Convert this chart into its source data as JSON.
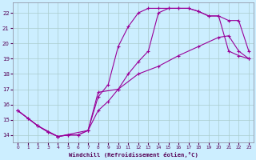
{
  "xlabel": "Windchill (Refroidissement éolien,°C)",
  "bg_color": "#cceeff",
  "grid_color": "#aacccc",
  "line_color": "#990099",
  "xlim": [
    -0.5,
    23.5
  ],
  "ylim": [
    13.5,
    22.7
  ],
  "yticks": [
    14,
    15,
    16,
    17,
    18,
    19,
    20,
    21,
    22
  ],
  "xticks": [
    0,
    1,
    2,
    3,
    4,
    5,
    6,
    7,
    8,
    9,
    10,
    11,
    12,
    13,
    14,
    15,
    16,
    17,
    18,
    19,
    20,
    21,
    22,
    23
  ],
  "curve1_x": [
    0,
    1,
    2,
    3,
    4,
    5,
    6,
    7,
    8,
    9,
    10,
    11,
    12,
    13,
    14,
    15,
    16,
    17,
    18,
    19,
    20,
    21,
    22,
    23
  ],
  "curve1_y": [
    15.6,
    15.1,
    14.6,
    14.2,
    13.9,
    14.0,
    14.0,
    14.3,
    16.5,
    17.3,
    19.8,
    21.1,
    22.0,
    22.3,
    22.3,
    22.3,
    22.3,
    22.3,
    22.1,
    21.8,
    21.8,
    21.5,
    21.5,
    19.5
  ],
  "curve2_x": [
    0,
    1,
    2,
    3,
    4,
    5,
    6,
    7,
    8,
    9,
    10,
    11,
    12,
    13,
    14,
    15,
    16,
    17,
    18,
    19,
    20,
    21,
    22,
    23
  ],
  "curve2_y": [
    15.6,
    15.1,
    14.6,
    14.2,
    13.9,
    14.0,
    14.0,
    14.3,
    15.6,
    16.2,
    17.0,
    18.0,
    18.8,
    19.5,
    22.0,
    22.3,
    22.3,
    22.3,
    22.1,
    21.8,
    21.8,
    19.5,
    19.2,
    19.0
  ],
  "curve3_x": [
    0,
    2,
    4,
    7,
    8,
    10,
    12,
    14,
    16,
    18,
    20,
    21,
    22,
    23
  ],
  "curve3_y": [
    15.6,
    14.6,
    13.9,
    14.3,
    16.8,
    17.0,
    18.0,
    18.5,
    19.2,
    19.8,
    20.4,
    20.5,
    19.5,
    19.0
  ]
}
